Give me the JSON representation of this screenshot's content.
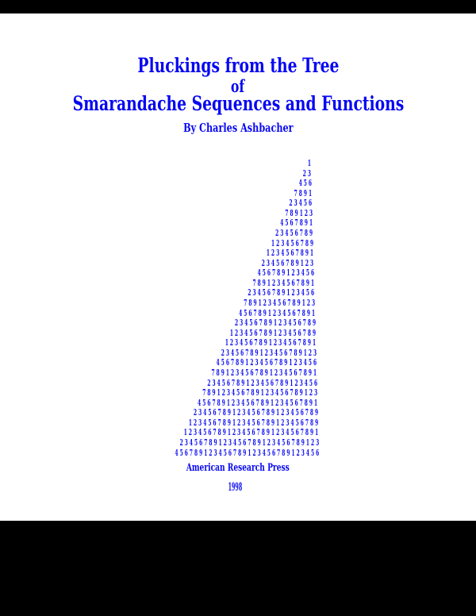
{
  "cover": {
    "title": {
      "line1": "Pluckings from the Tree",
      "line2": "of",
      "line3": "Smarandache Sequences and Functions"
    },
    "byline": "By Charles Ashbacher",
    "publisher": "American Research Press",
    "year": "1998"
  },
  "chart_data": {
    "type": "table",
    "title": "Triangle of the repeating digit cycle 1-9, row n holds n digits, right-aligned",
    "rows": [
      "1",
      "23",
      "456",
      "7891",
      "23456",
      "789123",
      "4567891",
      "23456789",
      "123456789",
      "1234567891",
      "23456789123",
      "456789123456",
      "7891234567891",
      "23456789123456",
      "789123456789123",
      "4567891234567891",
      "23456789123456789",
      "123456789123456789",
      "1234567891234567891",
      "23456789123456789123",
      "456789123456789123456",
      "7891234567891234567891",
      "23456789123456789123456",
      "789123456789123456789123",
      "4567891234567891234567891",
      "23456789123456789123456789",
      "123456789123456789123456789",
      "1234567891234567891234567891",
      "23456789123456789123456789123",
      "456789123456789123456789123456"
    ]
  },
  "colors": {
    "text_blue": "#0707f2",
    "page_background": "#ffffff",
    "frame_background": "#000000"
  }
}
